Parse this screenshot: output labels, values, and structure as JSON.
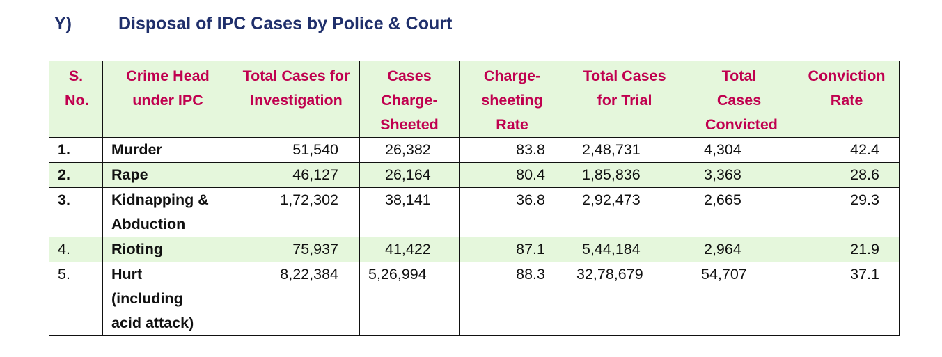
{
  "section": {
    "label": "Y)",
    "title": "Disposal of IPC Cases by Police & Court"
  },
  "table": {
    "headers": [
      "S. No.",
      "Crime Head under IPC",
      "Total Cases for Investigation",
      "Cases Charge-Sheeted",
      "Charge-sheeting Rate",
      "Total Cases for Trial",
      "Total Cases Convicted",
      "Conviction Rate"
    ],
    "rows": [
      [
        "1.",
        "Murder",
        "51,540",
        "26,382",
        "83.8",
        "2,48,731",
        "4,304",
        "42.4"
      ],
      [
        "2.",
        "Rape",
        "46,127",
        "26,164",
        "80.4",
        "1,85,836",
        "3,368",
        "28.6"
      ],
      [
        "3.",
        "Kidnapping & Abduction",
        "1,72,302",
        "38,141",
        "36.8",
        "2,92,473",
        "2,665",
        "29.3"
      ],
      [
        "4.",
        "Rioting",
        "75,937",
        "41,422",
        "87.1",
        "5,44,184",
        "2,964",
        "21.9"
      ],
      [
        "5.",
        "Hurt (including acid attack)",
        "8,22,384",
        "5,26,994",
        "88.3",
        "32,78,679",
        "54,707",
        "37.1"
      ]
    ]
  },
  "colors": {
    "title": "#1f2f6b",
    "header_text": "#c0004f",
    "shade": "#e5f7dc"
  }
}
